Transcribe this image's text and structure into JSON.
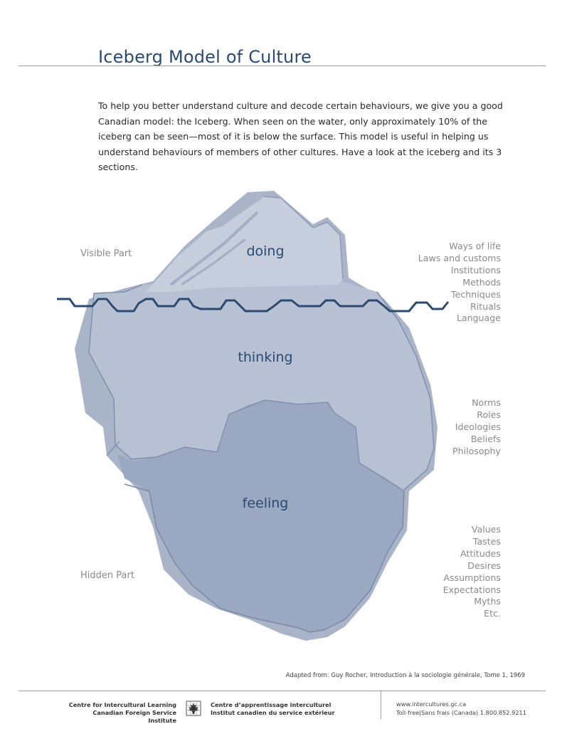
{
  "title": "Iceberg Model of Culture",
  "intro": "To help you better understand culture and decode certain behaviours, we give you a good Canadian model: the Iceberg. When seen on the water, only approximately 10% of the iceberg can be seen—most of it is below the surface. This model is useful in helping us understand behaviours of members of other cultures. Have a look at the iceberg and its 3 sections.",
  "labels": {
    "visible_part": "Visible Part",
    "hidden_part": "Hidden Part"
  },
  "zones": {
    "doing": "doing",
    "thinking": "thinking",
    "feeling": "feeling"
  },
  "lists": {
    "doing": [
      "Ways of life",
      "Laws and customs",
      "Institutions",
      "Methods",
      "Techniques",
      "Rituals",
      "Language"
    ],
    "thinking": [
      "Norms",
      "Roles",
      "Ideologies",
      "Beliefs",
      "Philosophy"
    ],
    "feeling": [
      "Values",
      "Tastes",
      "Attitudes",
      "Desires",
      "Assumptions",
      "Expectations",
      "Myths",
      "Etc."
    ]
  },
  "source": "Adapted from: Guy Rocher, Introduction à la sociologie générale, Tome 1, 1969",
  "footer": {
    "org_en_line1": "Centre for Intercultural Learning",
    "org_en_line2": "Canadian Foreign Service Institute",
    "org_fr_line1": "Centre d’apprentissage interculturel",
    "org_fr_line2": "Institut canadien du service extérieur",
    "website": "www.intercultures.gc.ca",
    "phone": "Toll-free|Sans frais (Canada) 1.800.852.9211"
  },
  "colors": {
    "title": "#2b4a72",
    "tip": "#c4ccdb",
    "middle": "#b6c0d2",
    "bottom": "#9aa7c1",
    "shadow": "#a8b3c7",
    "waterline": "#2b4a72"
  }
}
